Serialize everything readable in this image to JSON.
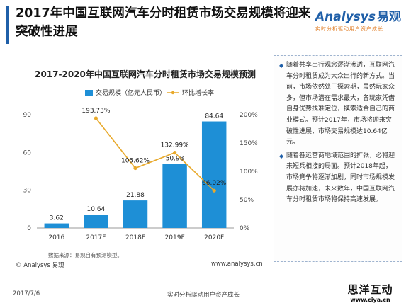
{
  "header": {
    "title": "2017年中国互联网汽车分时租赁市场交易规模将迎来突破性进展",
    "logo_text": "nalysys",
    "logo_initial": "A",
    "logo_cn": "易观",
    "logo_tagline": "实时分析驱动用户资产成长"
  },
  "chart_data": {
    "type": "bar",
    "title": "2017-2020年中国互联网汽车分时租赁市场交易规模预测",
    "categories": [
      "2016",
      "2017F",
      "2018F",
      "2019F",
      "2020F"
    ],
    "series": [
      {
        "name": "交易规模（亿元人民币）",
        "type": "bar",
        "axis": "left",
        "values": [
          3.62,
          10.64,
          21.88,
          50.98,
          84.64
        ],
        "labels": [
          "3.62",
          "10.64",
          "21.88",
          "50.98",
          "84.64"
        ]
      },
      {
        "name": "环比增长率",
        "type": "line",
        "axis": "right",
        "values": [
          null,
          193.73,
          105.62,
          132.99,
          66.02
        ],
        "labels": [
          "",
          "193.73%",
          "105.62%",
          "132.99%",
          "66.02%"
        ]
      }
    ],
    "ylim_left": [
      0,
      90
    ],
    "yticks_left": [
      "0",
      "30",
      "60",
      "90"
    ],
    "ylim_right": [
      0,
      200
    ],
    "yticks_right": [
      "0%",
      "50%",
      "100%",
      "150%",
      "200%"
    ],
    "legend_position": "top",
    "colors": {
      "bar": "#1e8fd6",
      "line": "#e8a92b"
    }
  },
  "side_panel": {
    "paragraphs": [
      "随着共享出行观念逐渐渗透，互联网汽车分时租赁成为大众出行的新方式。当前，市场依然处于探索期，虽然玩家众多，但市场潜在需求最大，各玩家凭借自身优势找准定位，摸索适合自己的商业模式。预计2017年，市场将迎来突破性进展，市场交易规模达10.64亿元。",
      "随着各运营商地域范围的扩张，必将迎来短兵相接的局面。预计2018年起，市场竞争将逐渐加剧，同时市场规模发展亦将加速，未来数年，中国互联网汽车分时租赁市场将保持高速发展。"
    ]
  },
  "source_note": "数据来源：易观自有预测模型。",
  "copyright": "© Analysys 易观",
  "website": "www.analysys.cn",
  "footer": {
    "date": "2017/7/6",
    "slogan": "实时分析驱动用户资产成长"
  },
  "corner_brand": {
    "name": "思洋互动",
    "url": "www.ciya.cn"
  }
}
